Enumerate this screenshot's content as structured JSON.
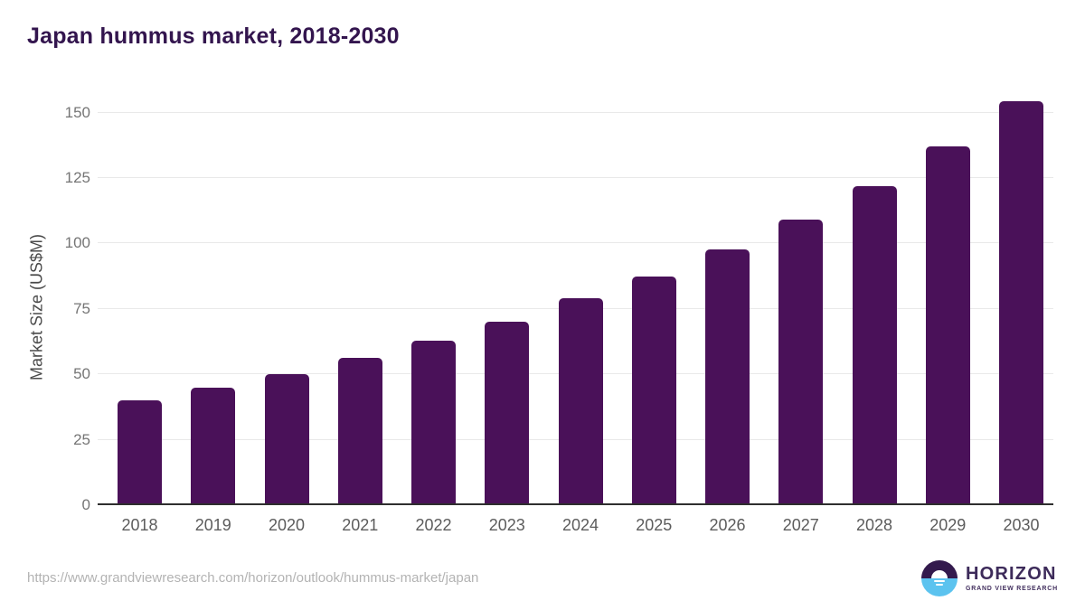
{
  "page": {
    "background_color": "#ffffff"
  },
  "header": {
    "title": "Japan hummus market, 2018-2030",
    "title_color": "#33154e"
  },
  "chart_data": {
    "type": "bar",
    "title": "Japan hummus market, 2018-2030",
    "categories": [
      "2018",
      "2019",
      "2020",
      "2021",
      "2022",
      "2023",
      "2024",
      "2025",
      "2026",
      "2027",
      "2028",
      "2029",
      "2030"
    ],
    "values": [
      40,
      45,
      50,
      56.3,
      63,
      70,
      79,
      87.4,
      97.8,
      109,
      122,
      137,
      154.5
    ],
    "xlabel": "",
    "ylabel": "Market Size (US$M)",
    "ylim": [
      0,
      158.5
    ],
    "yticks": [
      0,
      25,
      50,
      75,
      100,
      125,
      150
    ],
    "grid": true,
    "legend_position": "none",
    "bar_color": "#4a1159",
    "gridline_color": "#e9e9e9",
    "axis_line_color": "#2e2e2e",
    "x_tick_color": "#5c5c5c",
    "y_tick_color": "#757575"
  },
  "footer": {
    "source_url": "https://www.grandviewresearch.com/horizon/outlook/hummus-market/japan",
    "logo": {
      "name": "HORIZON",
      "subtitle": "GRAND VIEW RESEARCH",
      "name_color": "#3d2b5a",
      "subtitle_color": "#43305f",
      "icon_top_color": "#331a4d",
      "icon_bottom_color": "#5cc3ef"
    }
  }
}
